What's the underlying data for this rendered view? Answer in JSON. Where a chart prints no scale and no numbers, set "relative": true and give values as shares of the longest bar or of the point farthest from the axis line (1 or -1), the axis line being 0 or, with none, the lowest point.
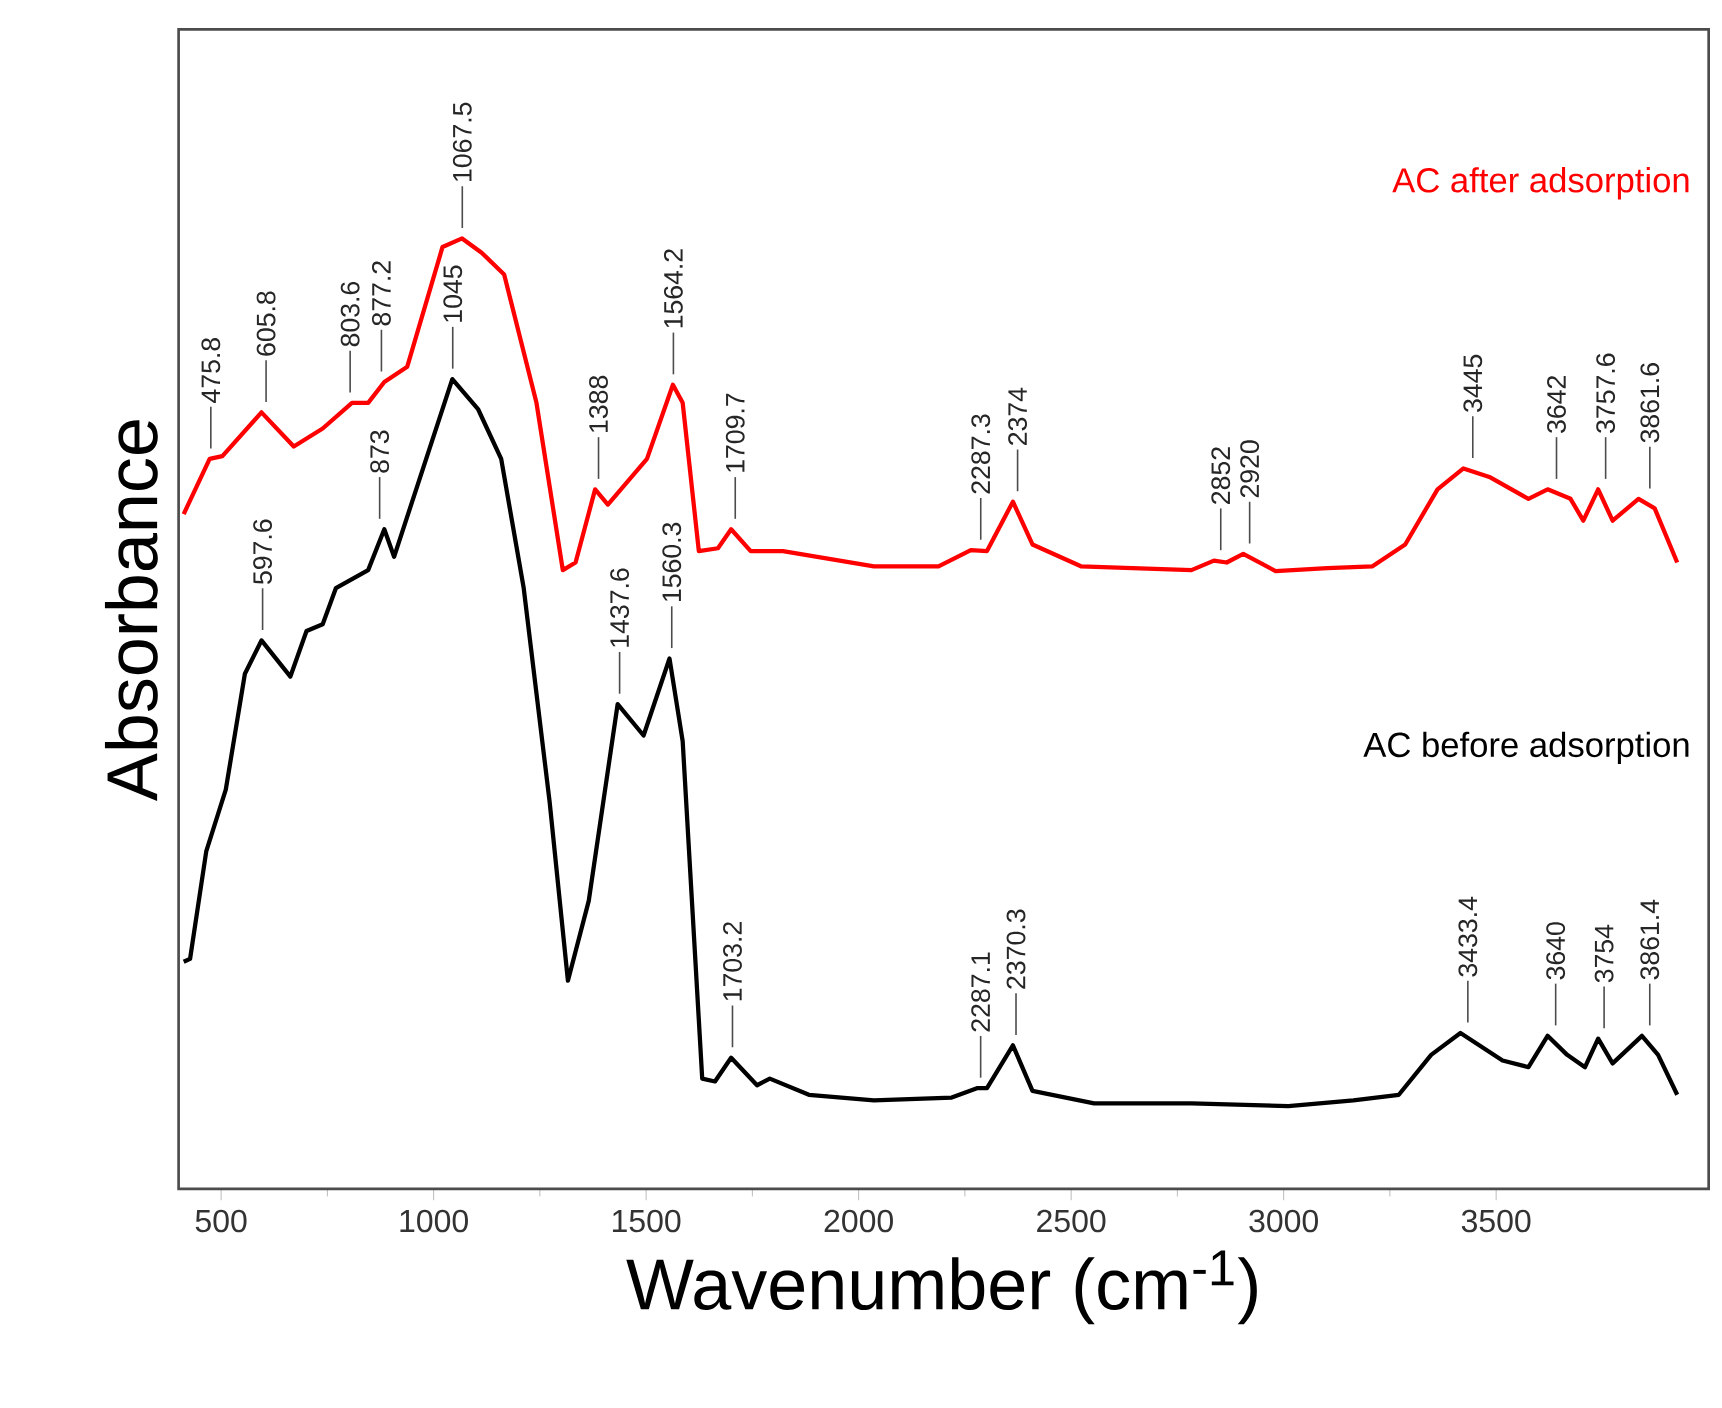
{
  "chart_data": {
    "type": "line",
    "relative": true,
    "xlabel": "Wavenumber (cm$^{-1}$)",
    "ylabel": "Absorbance",
    "xlim": [
      400,
      4000
    ],
    "xticks": [
      500,
      1000,
      1500,
      2000,
      2500,
      3000,
      3500
    ],
    "grid": false,
    "marker": "none",
    "line_style": "solid",
    "series": [
      {
        "name": "AC   after adsorption",
        "color": "#ff0000",
        "x": [
          412,
          473,
          503,
          595,
          671,
          739,
          808,
          846,
          884,
          938,
          1021,
          1067,
          1113,
          1166,
          1242,
          1304,
          1334,
          1380,
          1410,
          1502,
          1563,
          1586,
          1624,
          1669,
          1700,
          1746,
          1822,
          2036,
          2188,
          2264,
          2302,
          2363,
          2409,
          2523,
          2783,
          2836,
          2866,
          2905,
          2981,
          3103,
          3209,
          3286,
          3362,
          3423,
          3484,
          3576,
          3621,
          3675,
          3705,
          3740,
          3774,
          3835,
          3873,
          3926
        ],
        "values": [
          0.71,
          0.768,
          0.771,
          0.817,
          0.781,
          0.8,
          0.827,
          0.827,
          0.849,
          0.865,
          0.991,
          1,
          0.985,
          0.962,
          0.827,
          0.651,
          0.659,
          0.736,
          0.72,
          0.768,
          0.846,
          0.827,
          0.671,
          0.674,
          0.694,
          0.671,
          0.671,
          0.655,
          0.655,
          0.672,
          0.671,
          0.723,
          0.678,
          0.655,
          0.651,
          0.661,
          0.659,
          0.668,
          0.65,
          0.653,
          0.655,
          0.678,
          0.736,
          0.758,
          0.749,
          0.726,
          0.736,
          0.726,
          0.703,
          0.736,
          0.703,
          0.726,
          0.716,
          0.659
        ]
      },
      {
        "name": "AC   before adsorption",
        "color": "#000000",
        "x": [
          412,
          427,
          465,
          511,
          556,
          595,
          663,
          701,
          739,
          770,
          846,
          884,
          907,
          1044,
          1105,
          1159,
          1212,
          1273,
          1316,
          1365,
          1433,
          1494,
          1555,
          1586,
          1632,
          1662,
          1700,
          1761,
          1791,
          1883,
          2036,
          2219,
          2280,
          2302,
          2363,
          2409,
          2554,
          2783,
          3011,
          3164,
          3271,
          3347,
          3416,
          3515,
          3576,
          3621,
          3667,
          3709,
          3740,
          3774,
          3843,
          3881,
          3926
        ],
        "values": [
          0.239,
          0.242,
          0.355,
          0.42,
          0.542,
          0.577,
          0.539,
          0.587,
          0.594,
          0.632,
          0.651,
          0.694,
          0.665,
          0.852,
          0.82,
          0.768,
          0.632,
          0.407,
          0.219,
          0.303,
          0.51,
          0.477,
          0.558,
          0.471,
          0.116,
          0.113,
          0.138,
          0.109,
          0.116,
          0.099,
          0.093,
          0.096,
          0.106,
          0.106,
          0.151,
          0.103,
          0.09,
          0.09,
          0.087,
          0.093,
          0.099,
          0.141,
          0.164,
          0.135,
          0.128,
          0.161,
          0.141,
          0.128,
          0.158,
          0.132,
          0.161,
          0.141,
          0.099
        ]
      }
    ],
    "annotations": [
      {
        "text": "475.8",
        "x": 475.8,
        "y": 0.768
      },
      {
        "text": "605.8",
        "x": 605.8,
        "y": 0.817
      },
      {
        "text": "803.6",
        "x": 803.6,
        "y": 0.827
      },
      {
        "text": "877.2",
        "x": 877.2,
        "y": 0.849
      },
      {
        "text": "1067.5",
        "x": 1067.5,
        "y": 1
      },
      {
        "text": "1388",
        "x": 1388,
        "y": 0.736
      },
      {
        "text": "1564.2",
        "x": 1564.2,
        "y": 0.846
      },
      {
        "text": "1709.7",
        "x": 1709.7,
        "y": 0.694
      },
      {
        "text": "2287.3",
        "x": 2287.3,
        "y": 0.672
      },
      {
        "text": "2374",
        "x": 2374,
        "y": 0.723
      },
      {
        "text": "2852",
        "x": 2852,
        "y": 0.661
      },
      {
        "text": "2920",
        "x": 2920,
        "y": 0.668
      },
      {
        "text": "3445",
        "x": 3445,
        "y": 0.758
      },
      {
        "text": "3642",
        "x": 3642,
        "y": 0.736
      },
      {
        "text": "3757.6",
        "x": 3757.6,
        "y": 0.736
      },
      {
        "text": "3861.6",
        "x": 3861.6,
        "y": 0.726
      },
      {
        "text": "597.6",
        "x": 597.6,
        "y": 0.577
      },
      {
        "text": "873",
        "x": 873,
        "y": 0.694
      },
      {
        "text": "1045",
        "x": 1045,
        "y": 0.852
      },
      {
        "text": "1437.6",
        "x": 1437.6,
        "y": 0.51
      },
      {
        "text": "1560.3",
        "x": 1560.3,
        "y": 0.558
      },
      {
        "text": "1703.2",
        "x": 1703.2,
        "y": 0.138
      },
      {
        "text": "2287.1",
        "x": 2287.1,
        "y": 0.106
      },
      {
        "text": "2370.3",
        "x": 2370.3,
        "y": 0.151
      },
      {
        "text": "3433.4",
        "x": 3433.4,
        "y": 0.164
      },
      {
        "text": "3640",
        "x": 3640,
        "y": 0.161
      },
      {
        "text": "3754",
        "x": 3754,
        "y": 0.158
      },
      {
        "text": "3861.4",
        "x": 3861.4,
        "y": 0.161
      }
    ]
  }
}
